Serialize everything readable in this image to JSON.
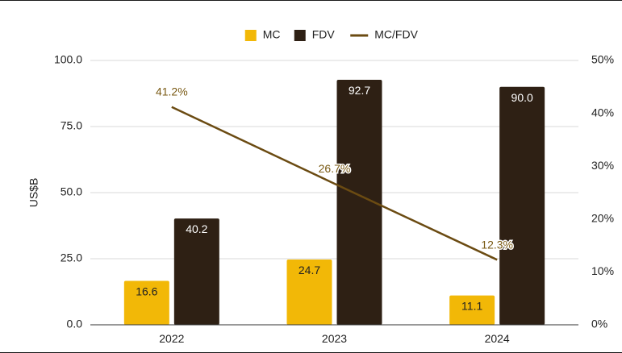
{
  "chart_data": {
    "type": "bar",
    "categories": [
      "2022",
      "2023",
      "2024"
    ],
    "series": [
      {
        "name": "MC",
        "kind": "bar",
        "axis": "left",
        "color": "#f2b807",
        "label_color": "#222222",
        "values": [
          16.6,
          24.7,
          11.1
        ],
        "labels": [
          "16.6",
          "24.7",
          "11.1"
        ]
      },
      {
        "name": "FDV",
        "kind": "bar",
        "axis": "left",
        "color": "#2e2014",
        "label_color": "#ffffff",
        "values": [
          40.2,
          92.7,
          90.0
        ],
        "labels": [
          "40.2",
          "92.7",
          "90.0"
        ]
      },
      {
        "name": "MC/FDV",
        "kind": "line",
        "axis": "right",
        "color": "#6b4b12",
        "values": [
          41.2,
          26.7,
          12.3
        ],
        "labels": [
          "41.2%",
          "26.7%",
          "12.3%"
        ]
      }
    ],
    "ylabel": "US$B",
    "ylim": [
      0,
      100
    ],
    "yticks": [
      "0.0",
      "25.0",
      "50.0",
      "75.0",
      "100.0"
    ],
    "y2lim": [
      0,
      50
    ],
    "y2ticks": [
      "0%",
      "10%",
      "20%",
      "30%",
      "40%",
      "50%"
    ],
    "grid": true,
    "legend": "top"
  }
}
